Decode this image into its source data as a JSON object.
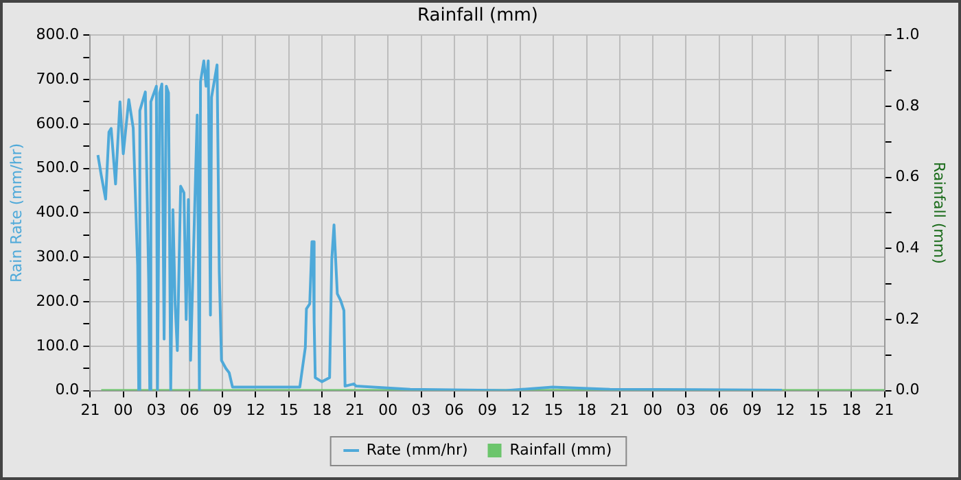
{
  "chart_data": {
    "type": "line",
    "title": "Rainfall (mm)",
    "ylabel": "Rain Rate (mm/hr)",
    "y2label": "Rainfall (mm)",
    "xlim": [
      "--01-01T21:00",
      "--01-04T21:00"
    ],
    "xticks": [
      {
        "value": "--01-01T21:00",
        "label": "21"
      },
      {
        "value": "--01-02T00:00",
        "label": "00"
      },
      {
        "value": "--01-02T03:00",
        "label": "03"
      },
      {
        "value": "--01-02T06:00",
        "label": "06"
      },
      {
        "value": "--01-02T09:00",
        "label": "09"
      },
      {
        "value": "--01-02T12:00",
        "label": "12"
      },
      {
        "value": "--01-02T15:00",
        "label": "15"
      },
      {
        "value": "--01-02T18:00",
        "label": "18"
      },
      {
        "value": "--01-02T21:00",
        "label": "21"
      },
      {
        "value": "--01-03T00:00",
        "label": "00"
      },
      {
        "value": "--01-03T03:00",
        "label": "03"
      },
      {
        "value": "--01-03T06:00",
        "label": "06"
      },
      {
        "value": "--01-03T09:00",
        "label": "09"
      },
      {
        "value": "--01-03T12:00",
        "label": "12"
      },
      {
        "value": "--01-03T15:00",
        "label": "15"
      },
      {
        "value": "--01-03T18:00",
        "label": "18"
      },
      {
        "value": "--01-03T21:00",
        "label": "21"
      },
      {
        "value": "--01-04T00:00",
        "label": "00"
      },
      {
        "value": "--01-04T03:00",
        "label": "03"
      },
      {
        "value": "--01-04T06:00",
        "label": "06"
      },
      {
        "value": "--01-04T09:00",
        "label": "09"
      },
      {
        "value": "--01-04T12:00",
        "label": "12"
      },
      {
        "value": "--01-04T15:00",
        "label": "15"
      },
      {
        "value": "--01-04T18:00",
        "label": "18"
      },
      {
        "value": "--01-04T21:00",
        "label": "21"
      }
    ],
    "ylim": [
      0,
      800
    ],
    "yticks": [
      {
        "value": 0,
        "label": "0.0"
      },
      {
        "value": 50,
        "label": null
      },
      {
        "value": 100,
        "label": "100.0"
      },
      {
        "value": 150,
        "label": null
      },
      {
        "value": 200,
        "label": "200.0"
      },
      {
        "value": 250,
        "label": null
      },
      {
        "value": 300,
        "label": "300.0"
      },
      {
        "value": 350,
        "label": null
      },
      {
        "value": 400,
        "label": "400.0"
      },
      {
        "value": 450,
        "label": null
      },
      {
        "value": 500,
        "label": "500.0"
      },
      {
        "value": 550,
        "label": null
      },
      {
        "value": 600,
        "label": "600.0"
      },
      {
        "value": 650,
        "label": null
      },
      {
        "value": 700,
        "label": "700.0"
      },
      {
        "value": 750,
        "label": null
      },
      {
        "value": 800,
        "label": "800.0"
      }
    ],
    "y2lim": [
      0,
      1
    ],
    "y2ticks": [
      {
        "value": 0,
        "label": "0.0"
      },
      {
        "value": 0.1,
        "label": null
      },
      {
        "value": 0.2,
        "label": "0.2"
      },
      {
        "value": 0.3,
        "label": null
      },
      {
        "value": 0.4,
        "label": "0.4"
      },
      {
        "value": 0.5,
        "label": null
      },
      {
        "value": 0.6,
        "label": "0.6"
      },
      {
        "value": 0.7,
        "label": null
      },
      {
        "value": 0.8,
        "label": "0.8"
      },
      {
        "value": 0.9,
        "label": null
      },
      {
        "value": 1,
        "label": "1.0"
      }
    ],
    "grid": true,
    "legend": "bottom",
    "marker": "none",
    "line_style": "solid",
    "series": [
      {
        "name": "Rate (mm/hr)",
        "color": "#4ea9d9",
        "x": [
          "--01-01T21:42",
          "--01-01T22:00",
          "--01-01T22:24",
          "--01-01T22:42",
          "--01-01T22:54",
          "--01-01T23:18",
          "--01-01T23:42",
          "--01-02T00:00",
          "--01-02T00:30",
          "--01-02T00:54",
          "--01-02T01:18",
          "--01-02T01:24",
          "--01-02T01:30",
          "--01-02T02:00",
          "--01-02T02:18",
          "--01-02T02:24",
          "--01-02T02:30",
          "--01-02T03:00",
          "--01-02T03:06",
          "--01-02T03:18",
          "--01-02T03:30",
          "--01-02T03:42",
          "--01-02T03:54",
          "--01-02T04:06",
          "--01-02T04:18",
          "--01-02T04:30",
          "--01-02T04:42",
          "--01-02T04:54",
          "--01-02T05:12",
          "--01-02T05:30",
          "--01-02T05:42",
          "--01-02T05:54",
          "--01-02T06:06",
          "--01-02T06:42",
          "--01-02T06:54",
          "--01-02T07:00",
          "--01-02T07:18",
          "--01-02T07:30",
          "--01-02T07:42",
          "--01-02T07:54",
          "--01-02T08:00",
          "--01-02T08:30",
          "--01-02T08:42",
          "--01-02T08:54",
          "--01-02T09:18",
          "--01-02T09:36",
          "--01-02T09:54",
          "--01-02T16:00",
          "--01-02T16:30",
          "--01-02T16:36",
          "--01-02T16:54",
          "--01-02T17:06",
          "--01-02T17:12",
          "--01-02T17:18",
          "--01-02T17:24",
          "--01-02T18:00",
          "--01-02T18:42",
          "--01-02T18:54",
          "--01-02T19:06",
          "--01-02T19:12",
          "--01-02T19:24",
          "--01-02T19:42",
          "--01-02T20:00",
          "--01-02T20:06",
          "--01-02T20:54",
          "--01-02T21:06",
          "--01-03T02:00",
          "--01-03T10:42",
          "--01-03T14:54",
          "--01-03T20:06",
          "--01-04T11:42"
        ],
        "values": [
          530,
          485,
          431,
          582,
          590,
          465,
          650,
          533,
          655,
          591,
          282,
          0,
          630,
          672,
          250,
          0,
          650,
          685,
          0,
          670,
          690,
          116,
          685,
          670,
          0,
          407,
          195,
          90,
          460,
          445,
          160,
          430,
          68,
          620,
          0,
          695,
          742,
          685,
          742,
          170,
          660,
          733,
          268,
          68,
          50,
          40,
          8,
          8,
          97,
          184,
          195,
          335,
          335,
          155,
          29,
          20,
          29,
          296,
          373,
          320,
          218,
          203,
          180,
          10,
          15,
          10,
          3,
          0,
          8,
          3,
          1
        ]
      },
      {
        "name": "Rainfall (mm)",
        "color": "#6cc56c",
        "type": "bar",
        "axis": "y2",
        "x": [
          "--01-01T22:00",
          "--01-02T09:00",
          "--01-02T21:00",
          "--01-03T09:00",
          "--01-03T21:00",
          "--01-04T09:00",
          "--01-04T21:00"
        ],
        "values": [
          0,
          0,
          0,
          0,
          0,
          0,
          0
        ]
      }
    ]
  }
}
